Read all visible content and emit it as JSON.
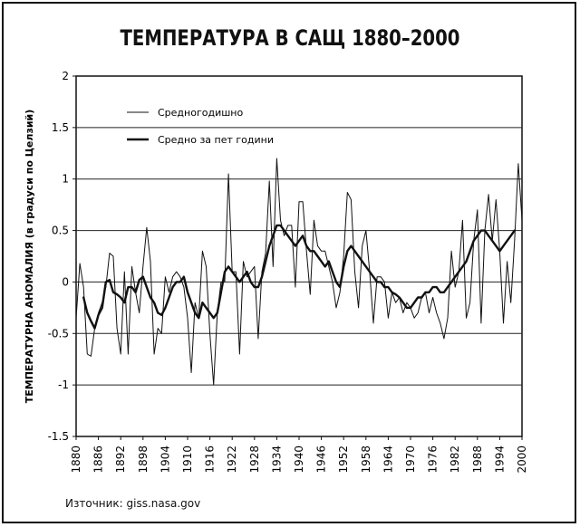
{
  "chart_data": {
    "type": "line",
    "title": "ТЕМПЕРАТУРА В САЩ 1880–2000",
    "ylabel": "ТЕМПЕРАТУРНА АНОМАЛИЯ (в градуси по Целзий)",
    "xlabel": "",
    "source": "Източник: giss.nasa.gov",
    "xlim": [
      1880,
      2000
    ],
    "ylim": [
      -1.5,
      2
    ],
    "yticks": [
      2,
      1.5,
      1,
      0.5,
      0,
      -0.5,
      -1,
      -1.5
    ],
    "ytick_labels": [
      "2",
      "1.5",
      "1",
      "0.5",
      "0",
      "-0.5",
      "-1",
      "-1.5"
    ],
    "xticks": [
      1880,
      1886,
      1892,
      1898,
      1904,
      1910,
      1916,
      1922,
      1928,
      1934,
      1940,
      1946,
      1952,
      1958,
      1964,
      1970,
      1976,
      1982,
      1988,
      1994,
      2000
    ],
    "xtick_labels": [
      "1880",
      "1886",
      "1892",
      "1898",
      "1904",
      "1910",
      "1916",
      "1922",
      "1928",
      "1934",
      "1940",
      "1946",
      "1952",
      "1958",
      "1964",
      "1970",
      "1976",
      "1982",
      "1988",
      "1994",
      "2000"
    ],
    "grid": "horizontal",
    "legend_position": "top-left",
    "series": [
      {
        "name": "Средногодишно",
        "x": [
          1880,
          1881,
          1882,
          1883,
          1884,
          1885,
          1886,
          1887,
          1888,
          1889,
          1890,
          1891,
          1892,
          1893,
          1894,
          1895,
          1896,
          1897,
          1898,
          1899,
          1900,
          1901,
          1902,
          1903,
          1904,
          1905,
          1906,
          1907,
          1908,
          1909,
          1910,
          1911,
          1912,
          1913,
          1914,
          1915,
          1916,
          1917,
          1918,
          1919,
          1920,
          1921,
          1922,
          1923,
          1924,
          1925,
          1926,
          1927,
          1928,
          1929,
          1930,
          1931,
          1932,
          1933,
          1934,
          1935,
          1936,
          1937,
          1938,
          1939,
          1940,
          1941,
          1942,
          1943,
          1944,
          1945,
          1946,
          1947,
          1948,
          1949,
          1950,
          1951,
          1952,
          1953,
          1954,
          1955,
          1956,
          1957,
          1958,
          1959,
          1960,
          1961,
          1962,
          1963,
          1964,
          1965,
          1966,
          1967,
          1968,
          1969,
          1970,
          1971,
          1972,
          1973,
          1974,
          1975,
          1976,
          1977,
          1978,
          1979,
          1980,
          1981,
          1982,
          1983,
          1984,
          1985,
          1986,
          1987,
          1988,
          1989,
          1990,
          1991,
          1992,
          1993,
          1994,
          1995,
          1996,
          1997,
          1998,
          1999,
          2000
        ],
        "values": [
          -0.35,
          0.18,
          -0.05,
          -0.7,
          -0.72,
          -0.45,
          -0.3,
          -0.2,
          -0.05,
          0.28,
          0.25,
          -0.45,
          -0.7,
          0.1,
          -0.7,
          0.15,
          -0.1,
          -0.3,
          0.15,
          0.53,
          0.2,
          -0.7,
          -0.45,
          -0.5,
          0.05,
          -0.1,
          0.05,
          0.1,
          0.05,
          -0.05,
          -0.35,
          -0.88,
          -0.2,
          -0.35,
          0.3,
          0.15,
          -0.5,
          -1.0,
          -0.3,
          0.0,
          0.0,
          1.05,
          0.1,
          0.1,
          -0.7,
          0.2,
          0.05,
          0.1,
          0.15,
          -0.55,
          0.1,
          0.28,
          0.98,
          0.15,
          1.2,
          0.6,
          0.45,
          0.55,
          0.55,
          -0.05,
          0.78,
          0.78,
          0.3,
          -0.12,
          0.6,
          0.35,
          0.3,
          0.3,
          0.15,
          0.0,
          -0.25,
          -0.1,
          0.25,
          0.87,
          0.8,
          0.1,
          -0.25,
          0.35,
          0.5,
          0.1,
          -0.4,
          0.05,
          0.05,
          0.0,
          -0.35,
          -0.1,
          -0.2,
          -0.15,
          -0.3,
          -0.2,
          -0.25,
          -0.35,
          -0.3,
          -0.15,
          -0.1,
          -0.3,
          -0.15,
          -0.3,
          -0.4,
          -0.55,
          -0.35,
          0.3,
          -0.05,
          0.1,
          0.6,
          -0.35,
          -0.2,
          0.4,
          0.7,
          -0.4,
          0.5,
          0.85,
          0.4,
          0.8,
          0.3,
          -0.4,
          0.2,
          -0.2,
          0.4,
          1.15,
          0.6
        ],
        "line_width": 1
      },
      {
        "name": "Средно за пет години",
        "x": [
          1882,
          1883,
          1884,
          1885,
          1886,
          1887,
          1888,
          1889,
          1890,
          1891,
          1892,
          1893,
          1894,
          1895,
          1896,
          1897,
          1898,
          1899,
          1900,
          1901,
          1902,
          1903,
          1904,
          1905,
          1906,
          1907,
          1908,
          1909,
          1910,
          1911,
          1912,
          1913,
          1914,
          1915,
          1916,
          1917,
          1918,
          1919,
          1920,
          1921,
          1922,
          1923,
          1924,
          1925,
          1926,
          1927,
          1928,
          1929,
          1930,
          1931,
          1932,
          1933,
          1934,
          1935,
          1936,
          1937,
          1938,
          1939,
          1940,
          1941,
          1942,
          1943,
          1944,
          1945,
          1946,
          1947,
          1948,
          1949,
          1950,
          1951,
          1952,
          1953,
          1954,
          1955,
          1956,
          1957,
          1958,
          1959,
          1960,
          1961,
          1962,
          1963,
          1964,
          1965,
          1966,
          1967,
          1968,
          1969,
          1970,
          1971,
          1972,
          1973,
          1974,
          1975,
          1976,
          1977,
          1978,
          1979,
          1980,
          1981,
          1982,
          1983,
          1984,
          1985,
          1986,
          1987,
          1988,
          1989,
          1990,
          1991,
          1992,
          1993,
          1994,
          1995,
          1996,
          1997,
          1998
        ],
        "values": [
          -0.15,
          -0.3,
          -0.38,
          -0.45,
          -0.32,
          -0.25,
          0.0,
          0.02,
          -0.1,
          -0.12,
          -0.15,
          -0.2,
          -0.05,
          -0.05,
          -0.1,
          0.02,
          0.05,
          -0.05,
          -0.15,
          -0.2,
          -0.3,
          -0.32,
          -0.25,
          -0.15,
          -0.05,
          0.0,
          0.0,
          0.05,
          -0.1,
          -0.2,
          -0.3,
          -0.35,
          -0.2,
          -0.25,
          -0.3,
          -0.35,
          -0.3,
          -0.1,
          0.1,
          0.15,
          0.1,
          0.05,
          0.0,
          0.05,
          0.1,
          0.0,
          -0.05,
          -0.05,
          0.05,
          0.2,
          0.35,
          0.45,
          0.55,
          0.55,
          0.5,
          0.45,
          0.4,
          0.35,
          0.4,
          0.45,
          0.35,
          0.3,
          0.3,
          0.25,
          0.2,
          0.15,
          0.2,
          0.1,
          0.0,
          -0.05,
          0.15,
          0.3,
          0.35,
          0.3,
          0.25,
          0.2,
          0.15,
          0.1,
          0.05,
          0.0,
          0.0,
          -0.05,
          -0.05,
          -0.1,
          -0.12,
          -0.15,
          -0.2,
          -0.25,
          -0.25,
          -0.2,
          -0.15,
          -0.15,
          -0.1,
          -0.1,
          -0.05,
          -0.05,
          -0.1,
          -0.1,
          -0.05,
          0.0,
          0.05,
          0.1,
          0.15,
          0.2,
          0.3,
          0.4,
          0.45,
          0.5,
          0.5,
          0.45,
          0.4,
          0.35,
          0.3,
          0.35,
          0.4,
          0.45,
          0.5
        ],
        "line_width": 2.4
      }
    ]
  }
}
